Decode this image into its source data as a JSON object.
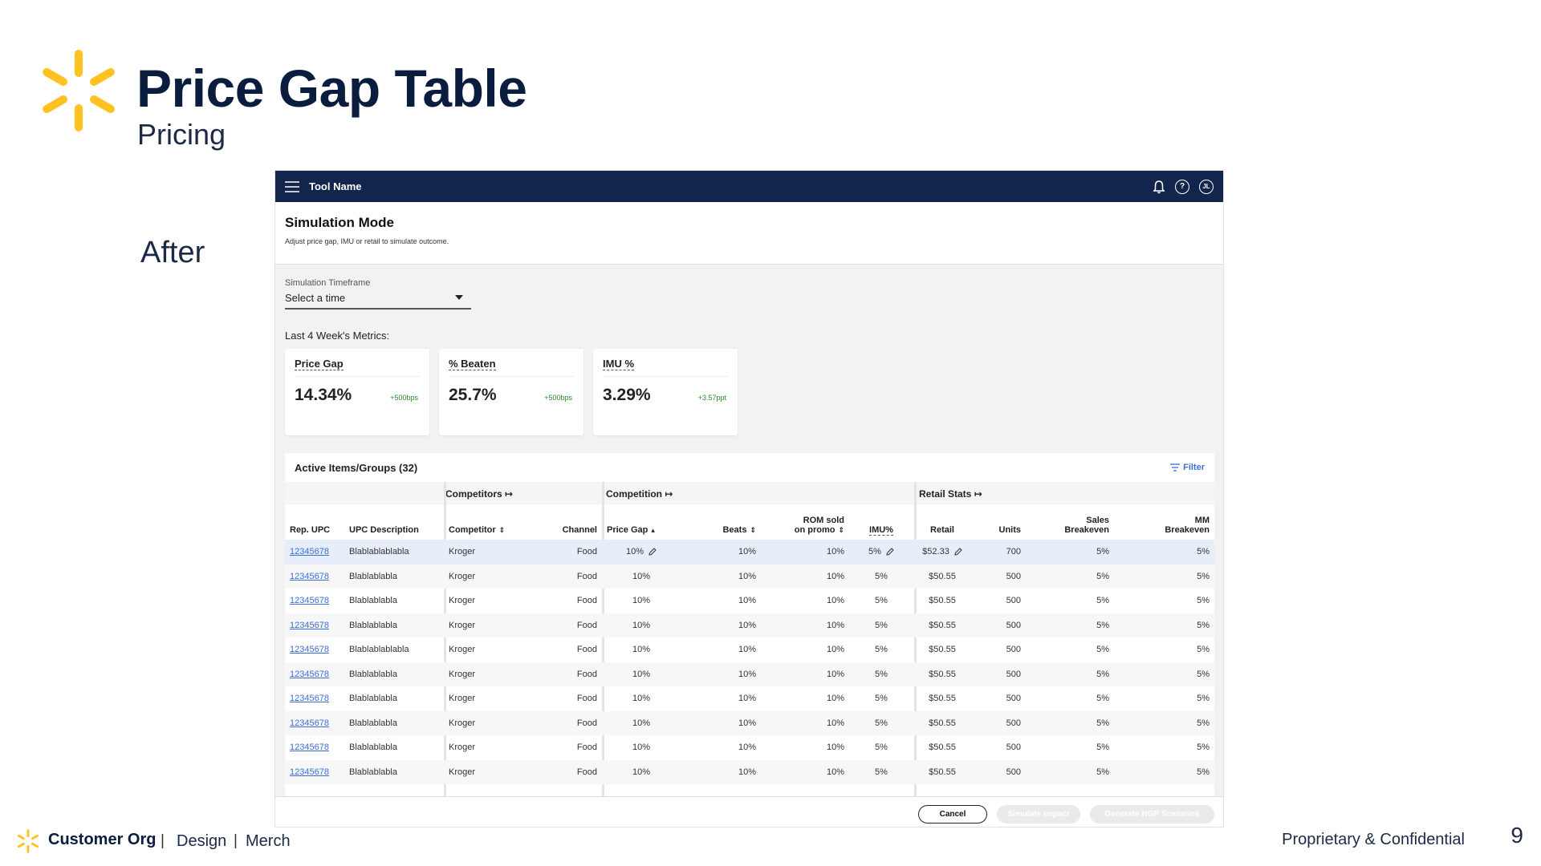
{
  "slide": {
    "title": "Price Gap Table",
    "subtitle": "Pricing",
    "label": "After",
    "footer_org": "Customer Org",
    "footer_sep": "|",
    "footer_design": "Design",
    "footer_merch": "Merch",
    "confidential": "Proprietary & Confidential",
    "page_number": "9",
    "brand_color": "#ffc220"
  },
  "app": {
    "tool_name": "Tool Name",
    "user_initials": "JL",
    "help_glyph": "?",
    "icons": [
      "menu-icon",
      "bell-icon",
      "help-icon",
      "avatar"
    ],
    "page_title": "Simulation Mode",
    "page_desc": "Adjust price gap, IMU or retail to simulate outcome.",
    "timeframe_label": "Simulation Timeframe",
    "timeframe_value": "Select a time",
    "metrics_label": "Last 4 Week's Metrics:",
    "metrics": [
      {
        "title": "Price Gap",
        "value": "14.34%",
        "delta": "+500bps"
      },
      {
        "title": "% Beaten",
        "value": "25.7%",
        "delta": "+500bps"
      },
      {
        "title": "IMU %",
        "value": "3.29%",
        "delta": "+3.57ppt"
      }
    ],
    "table_title": "Active Items/Groups (32)",
    "filter_label": "Filter",
    "groups": {
      "competitors": "Competitors",
      "competition": "Competition",
      "retail_stats": "Retail Stats"
    },
    "columns": {
      "rep_upc": "Rep. UPC",
      "upc_desc": "UPC Description",
      "competitor": "Competitor",
      "channel": "Channel",
      "price_gap": "Price Gap",
      "beats": "Beats",
      "rom_sold_1": "ROM sold",
      "rom_sold_2": "on promo",
      "imu": "IMU%",
      "retail": "Retail",
      "units": "Units",
      "sales_be_1": "Sales",
      "sales_be_2": "Breakeven",
      "mm_be_1": "MM",
      "mm_be_2": "Breakeven"
    },
    "rows": [
      {
        "upc": "12345678",
        "desc": "Blablablablabla",
        "comp": "Kroger",
        "channel": "Food",
        "gap": "10%",
        "beats": "10%",
        "rom": "10%",
        "imu": "5%",
        "retail": "$52.33",
        "units": "700",
        "sbe": "5%",
        "mmbe": "5%"
      },
      {
        "upc": "12345678",
        "desc": "Blablablabla",
        "comp": "Kroger",
        "channel": "Food",
        "gap": "10%",
        "beats": "10%",
        "rom": "10%",
        "imu": "5%",
        "retail": "$50.55",
        "units": "500",
        "sbe": "5%",
        "mmbe": "5%"
      },
      {
        "upc": "12345678",
        "desc": "Blablablabla",
        "comp": "Kroger",
        "channel": "Food",
        "gap": "10%",
        "beats": "10%",
        "rom": "10%",
        "imu": "5%",
        "retail": "$50.55",
        "units": "500",
        "sbe": "5%",
        "mmbe": "5%"
      },
      {
        "upc": "12345678",
        "desc": "Blablablabla",
        "comp": "Kroger",
        "channel": "Food",
        "gap": "10%",
        "beats": "10%",
        "rom": "10%",
        "imu": "5%",
        "retail": "$50.55",
        "units": "500",
        "sbe": "5%",
        "mmbe": "5%"
      },
      {
        "upc": "12345678",
        "desc": "Blablablablabla",
        "comp": "Kroger",
        "channel": "Food",
        "gap": "10%",
        "beats": "10%",
        "rom": "10%",
        "imu": "5%",
        "retail": "$50.55",
        "units": "500",
        "sbe": "5%",
        "mmbe": "5%"
      },
      {
        "upc": "12345678",
        "desc": "Blablablabla",
        "comp": "Kroger",
        "channel": "Food",
        "gap": "10%",
        "beats": "10%",
        "rom": "10%",
        "imu": "5%",
        "retail": "$50.55",
        "units": "500",
        "sbe": "5%",
        "mmbe": "5%"
      },
      {
        "upc": "12345678",
        "desc": "Blablablabla",
        "comp": "Kroger",
        "channel": "Food",
        "gap": "10%",
        "beats": "10%",
        "rom": "10%",
        "imu": "5%",
        "retail": "$50.55",
        "units": "500",
        "sbe": "5%",
        "mmbe": "5%"
      },
      {
        "upc": "12345678",
        "desc": "Blablablabla",
        "comp": "Kroger",
        "channel": "Food",
        "gap": "10%",
        "beats": "10%",
        "rom": "10%",
        "imu": "5%",
        "retail": "$50.55",
        "units": "500",
        "sbe": "5%",
        "mmbe": "5%"
      },
      {
        "upc": "12345678",
        "desc": "Blablablabla",
        "comp": "Kroger",
        "channel": "Food",
        "gap": "10%",
        "beats": "10%",
        "rom": "10%",
        "imu": "5%",
        "retail": "$50.55",
        "units": "500",
        "sbe": "5%",
        "mmbe": "5%"
      },
      {
        "upc": "12345678",
        "desc": "Blablablabla",
        "comp": "Kroger",
        "channel": "Food",
        "gap": "10%",
        "beats": "10%",
        "rom": "10%",
        "imu": "5%",
        "retail": "$50.55",
        "units": "500",
        "sbe": "5%",
        "mmbe": "5%"
      }
    ],
    "buttons": {
      "cancel": "Cancel",
      "simulate": "Simulate Impact",
      "generate": "Generate NGP Scenarios"
    }
  }
}
